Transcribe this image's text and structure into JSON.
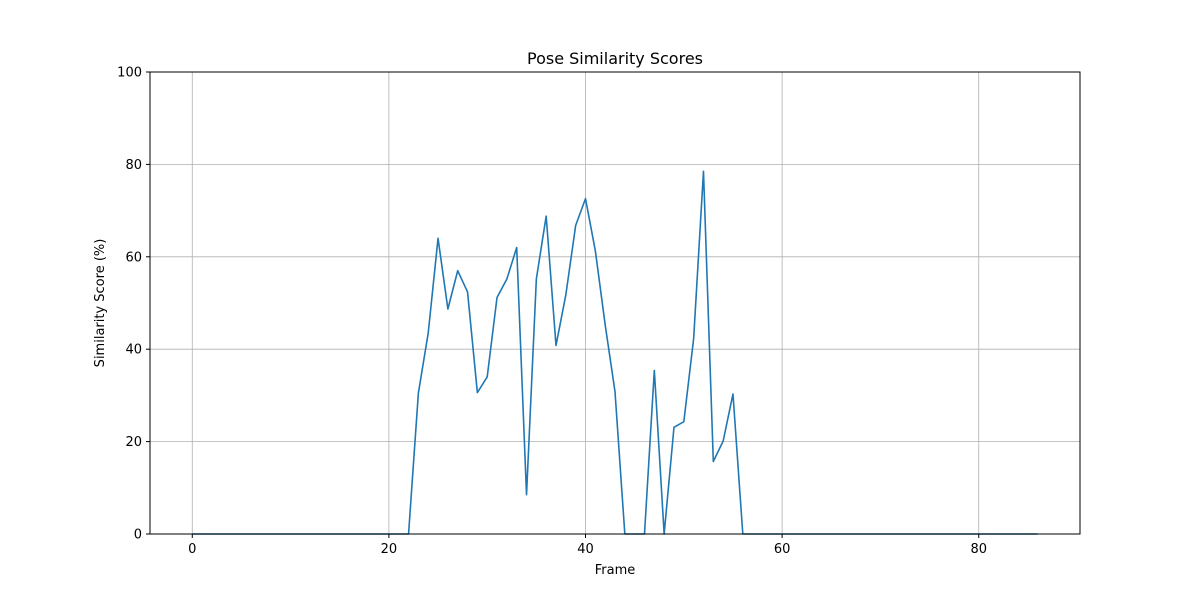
{
  "chart_data": {
    "type": "line",
    "title": "Pose Similarity Scores",
    "xlabel": "Frame",
    "ylabel": "Similarity Score (%)",
    "xlim": [
      -4.3,
      90.3
    ],
    "ylim": [
      0,
      100
    ],
    "xticks": [
      0,
      20,
      40,
      60,
      80
    ],
    "yticks": [
      0,
      20,
      40,
      60,
      80,
      100
    ],
    "grid": true,
    "line_color": "#1f77b4",
    "series": [
      {
        "x": [
          0,
          1,
          2,
          3,
          4,
          5,
          6,
          7,
          8,
          9,
          10,
          11,
          12,
          13,
          14,
          15,
          16,
          17,
          18,
          19,
          20,
          21,
          22,
          23,
          24,
          25,
          26,
          27,
          28,
          29,
          30,
          31,
          32,
          33,
          34,
          35,
          36,
          37,
          38,
          39,
          40,
          41,
          42,
          43,
          44,
          45,
          46,
          47,
          48,
          49,
          50,
          51,
          52,
          53,
          54,
          55,
          56,
          57,
          58,
          59,
          60,
          61,
          62,
          63,
          64,
          65,
          66,
          67,
          68,
          69,
          70,
          71,
          72,
          73,
          74,
          75,
          76,
          77,
          78,
          79,
          80,
          81,
          82,
          83,
          84,
          85,
          86
        ],
        "values": [
          0,
          0,
          0,
          0,
          0,
          0,
          0,
          0,
          0,
          0,
          0,
          0,
          0,
          0,
          0,
          0,
          0,
          0,
          0,
          0,
          0,
          0,
          0,
          30.5,
          43.5,
          64,
          48.7,
          57,
          52.4,
          30.6,
          34,
          51.2,
          55.2,
          62,
          8.5,
          55.2,
          68.8,
          40.8,
          51.8,
          66.8,
          72.6,
          61.3,
          45.3,
          30.8,
          0,
          0,
          0,
          35.4,
          0,
          23.1,
          24.3,
          42.3,
          78.5,
          15.7,
          20.1,
          30.3,
          0,
          0,
          0,
          0,
          0,
          0,
          0,
          0,
          0,
          0,
          0,
          0,
          0,
          0,
          0,
          0,
          0,
          0,
          0,
          0,
          0,
          0,
          0,
          0,
          0,
          0,
          0,
          0,
          0,
          0,
          0
        ]
      }
    ]
  }
}
